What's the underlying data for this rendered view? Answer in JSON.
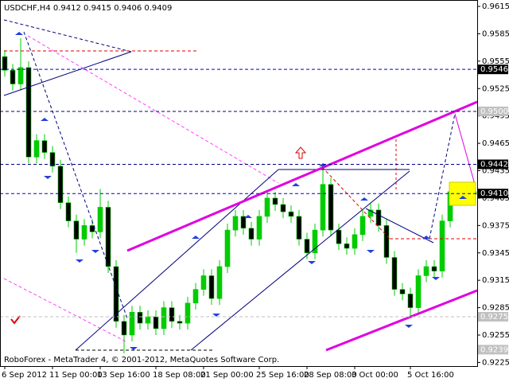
{
  "chart_data": {
    "type": "candlestick",
    "title": "USDCHF,H4  0.9412 0.9415 0.9406 0.9409",
    "footer": "RoboForex - MetaTrader 4, © 2001-2012, MetaQuotes Software Corp.",
    "open": [
      0.956,
      0.9545,
      0.953,
      0.9548,
      0.945,
      0.9468,
      0.9455,
      0.944,
      0.94,
      0.938,
      0.936,
      0.9375,
      0.9368,
      0.9395,
      0.933,
      0.927,
      0.9255,
      0.928,
      0.9268,
      0.9275,
      0.9262,
      0.9285,
      0.927,
      0.9268,
      0.929,
      0.9305,
      0.932,
      0.9295,
      0.933,
      0.937,
      0.9385,
      0.9372,
      0.936,
      0.9385,
      0.9405,
      0.9398,
      0.939,
      0.9385,
      0.936,
      0.9345,
      0.937,
      0.942,
      0.937,
      0.9355,
      0.935,
      0.9365,
      0.9385,
      0.9392,
      0.9375,
      0.934,
      0.9305,
      0.93,
      0.9285,
      0.932,
      0.933,
      0.9325,
      0.938,
      0.9412,
      0.9405,
      0.9412
    ],
    "high": [
      0.9567,
      0.9552,
      0.958,
      0.9555,
      0.9475,
      0.9475,
      0.9462,
      0.9447,
      0.9407,
      0.9387,
      0.9382,
      0.9382,
      0.9415,
      0.9402,
      0.9337,
      0.9277,
      0.9287,
      0.9287,
      0.9282,
      0.9282,
      0.9292,
      0.9292,
      0.9277,
      0.9297,
      0.9312,
      0.9327,
      0.9327,
      0.9337,
      0.9377,
      0.9392,
      0.9392,
      0.9379,
      0.9392,
      0.9412,
      0.9412,
      0.9405,
      0.9397,
      0.9392,
      0.9367,
      0.9377,
      0.9443,
      0.9427,
      0.9377,
      0.9362,
      0.9372,
      0.9392,
      0.9399,
      0.9399,
      0.9382,
      0.9347,
      0.9312,
      0.9307,
      0.9327,
      0.9337,
      0.9337,
      0.9387,
      0.9419,
      0.9419,
      0.9419,
      0.9415
    ],
    "low": [
      0.9538,
      0.9523,
      0.9523,
      0.9443,
      0.9443,
      0.9448,
      0.9433,
      0.9393,
      0.9373,
      0.9345,
      0.9353,
      0.9361,
      0.9361,
      0.9323,
      0.9263,
      0.9235,
      0.9248,
      0.9261,
      0.9261,
      0.9255,
      0.9255,
      0.9263,
      0.9261,
      0.9261,
      0.9283,
      0.9298,
      0.9288,
      0.9288,
      0.9323,
      0.9363,
      0.9365,
      0.9353,
      0.9353,
      0.9378,
      0.9391,
      0.9383,
      0.9378,
      0.9353,
      0.9338,
      0.9338,
      0.9363,
      0.9363,
      0.9348,
      0.9343,
      0.9343,
      0.9358,
      0.9378,
      0.9368,
      0.9333,
      0.9298,
      0.9293,
      0.9275,
      0.9278,
      0.9313,
      0.9318,
      0.9318,
      0.9373,
      0.9398,
      0.9398,
      0.9406
    ],
    "close": [
      0.9545,
      0.953,
      0.9548,
      0.945,
      0.9468,
      0.9455,
      0.944,
      0.94,
      0.938,
      0.936,
      0.9375,
      0.9368,
      0.9395,
      0.933,
      0.927,
      0.9255,
      0.928,
      0.9268,
      0.9275,
      0.9262,
      0.9285,
      0.927,
      0.9268,
      0.929,
      0.9305,
      0.932,
      0.9295,
      0.933,
      0.937,
      0.9385,
      0.9372,
      0.936,
      0.9385,
      0.9405,
      0.9398,
      0.939,
      0.9385,
      0.936,
      0.9345,
      0.937,
      0.942,
      0.937,
      0.9355,
      0.935,
      0.9365,
      0.9385,
      0.9392,
      0.9375,
      0.934,
      0.9305,
      0.93,
      0.9285,
      0.932,
      0.933,
      0.9325,
      0.938,
      0.9412,
      0.9405,
      0.9412,
      0.9409
    ],
    "bull_color": "#00cc00",
    "bear_color": "#000000",
    "wick_color": "#00cc00",
    "ylim": [
      0.9221,
      0.9622
    ],
    "yticks": [
      0.9615,
      0.9585,
      0.9555,
      0.9525,
      0.9495,
      0.9465,
      0.9435,
      0.9405,
      0.9375,
      0.9345,
      0.9315,
      0.9285,
      0.9255,
      0.9225
    ],
    "xticks": [
      {
        "value": 0,
        "label": "6 Sep 2012"
      },
      {
        "value": 6,
        "label": "11 Sep 00:00"
      },
      {
        "value": 12,
        "label": "13 Sep 16:00"
      },
      {
        "value": 19,
        "label": "18 Sep 08:00"
      },
      {
        "value": 25,
        "label": "21 Sep 00:00"
      },
      {
        "value": 32,
        "label": "25 Sep 16:00"
      },
      {
        "value": 38,
        "label": "28 Sep 08:00"
      },
      {
        "value": 44,
        "label": "3 Oct 00:00"
      },
      {
        "value": 51,
        "label": "5 Oct 16:00"
      }
    ],
    "levels": [
      {
        "value": 0.9546,
        "label": "0.9546"
      },
      {
        "value": 0.95,
        "label": "0.9500"
      },
      {
        "value": 0.9442,
        "label": "0.9442"
      },
      {
        "value": 0.941,
        "label": "0.9410"
      },
      {
        "value": 0.9275,
        "label": "0.9275"
      },
      {
        "value": 0.9239,
        "label": "0.9239"
      }
    ],
    "level_styles": [
      "dark",
      "grey",
      "dark",
      "dark",
      "grey",
      "grey"
    ],
    "level_line_colors": [
      "#0000cc",
      "#000080",
      "#000080",
      "#0000cc",
      "#c0c0c0",
      "none"
    ]
  }
}
